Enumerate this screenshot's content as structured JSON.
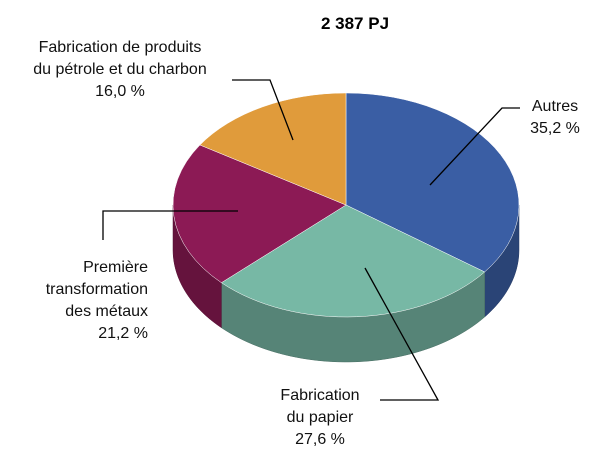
{
  "chart_data": {
    "type": "pie3d",
    "title": "2 387 PJ",
    "categories": [
      "Autres",
      "Fabrication\ndu papier",
      "Première\ntransformation\ndes métaux",
      "Fabrication de produits\ndu pétrole et du charbon"
    ],
    "values": [
      35.2,
      27.6,
      21.2,
      16.0
    ],
    "value_labels": [
      "35,2 %",
      "27,6 %",
      "21,2 %",
      "16,0 %"
    ],
    "colors": [
      "#3a5ea4",
      "#77b8a5",
      "#8c1a55",
      "#e09b3b"
    ]
  }
}
